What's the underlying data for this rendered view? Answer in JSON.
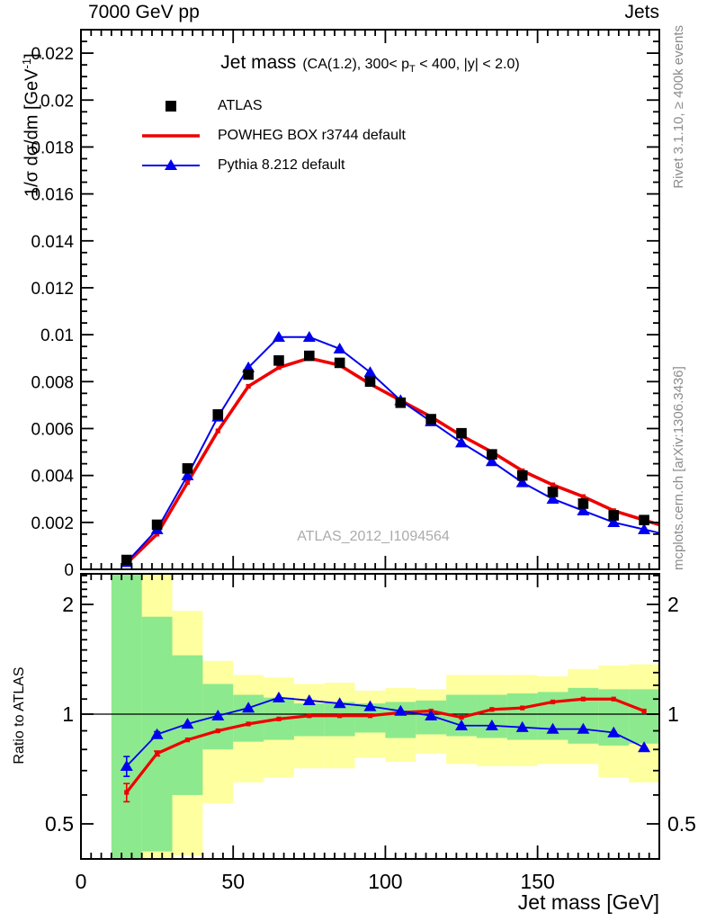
{
  "header": {
    "left": "7000 GeV pp",
    "right": "Jets"
  },
  "title": {
    "main": "Jet mass",
    "detail_pre": "(CA(1.2), 300< p",
    "detail_sub": "T",
    "detail_post": " < 400, |y| < 2.0)"
  },
  "legend": {
    "items": [
      {
        "label": "ATLAS",
        "marker": "black-square"
      },
      {
        "label": "POWHEG BOX r3744 default",
        "marker": "red-line"
      },
      {
        "label": "Pythia 8.212 default",
        "marker": "blue-triangle-line"
      }
    ]
  },
  "watermark": "ATLAS_2012_I1094564",
  "side_notes": {
    "top": "Rivet 3.1.10, ≥ 400k events",
    "bottom": "mcplots.cern.ch [arXiv:1306.3436]"
  },
  "colors": {
    "red": "#ee0000",
    "blue": "#0000ee",
    "black": "#000000",
    "band_green": "#8de98d",
    "band_yellow": "#feff9e",
    "gray_text": "#8c8c8c",
    "watermark": "#ababab"
  },
  "axes": {
    "x": {
      "label": "Jet mass [GeV]",
      "tick_labels": [
        "0",
        "50",
        "100",
        "150"
      ],
      "tick_values": [
        0,
        50,
        100,
        150
      ],
      "range": [
        0,
        190
      ]
    },
    "y_main": {
      "label_pre": "1/σ dσ/dm [GeV",
      "label_sup": "-1",
      "label_post": "]",
      "tick_values": [
        0,
        0.002,
        0.004,
        0.006,
        0.008,
        0.01,
        0.012,
        0.014,
        0.016,
        0.018,
        0.02,
        0.022
      ],
      "tick_labels": [
        "0",
        "0.002",
        "0.004",
        "0.006",
        "0.008",
        "0.01",
        "0.012",
        "0.014",
        "0.016",
        "0.018",
        "0.02",
        "0.022"
      ],
      "range": [
        0,
        0.023
      ]
    },
    "y_ratio": {
      "label": "Ratio to ATLAS",
      "scale": "log",
      "tick_values": [
        0.5,
        1,
        2
      ],
      "tick_labels": [
        "0.5",
        "1",
        "2"
      ],
      "range": [
        0.4,
        2.43
      ]
    }
  },
  "chart_data": {
    "type": "line",
    "title": "Jet mass (CA(1.2), 300< pT < 400, |y| < 2.0)",
    "xlabel": "Jet mass [GeV]",
    "ylabel": "1/sigma dsigma/dm [GeV^-1]",
    "xlim": [
      0,
      190
    ],
    "ylim": [
      0,
      0.023
    ],
    "x": [
      15,
      25,
      35,
      45,
      55,
      65,
      75,
      85,
      95,
      105,
      115,
      125,
      135,
      145,
      155,
      165,
      175,
      185
    ],
    "bin_edges": [
      10,
      20,
      30,
      40,
      50,
      60,
      70,
      80,
      90,
      100,
      110,
      120,
      130,
      140,
      150,
      160,
      170,
      180,
      190
    ],
    "series": [
      {
        "name": "ATLAS",
        "marker": "square",
        "color": "#000000",
        "values": [
          0.0004,
          0.0019,
          0.0043,
          0.0066,
          0.0083,
          0.0089,
          0.0091,
          0.0088,
          0.008,
          0.0071,
          0.0064,
          0.0058,
          0.0049,
          0.004,
          0.0033,
          0.0028,
          0.0023,
          0.0021
        ]
      },
      {
        "name": "POWHEG BOX r3744 default",
        "marker": "small-square",
        "color": "#ee0000",
        "values": [
          0.00025,
          0.0015,
          0.0037,
          0.0059,
          0.0078,
          0.0086,
          0.009,
          0.0087,
          0.0079,
          0.0072,
          0.0065,
          0.0057,
          0.005,
          0.0042,
          0.0036,
          0.0031,
          0.0025,
          0.0021
        ]
      },
      {
        "name": "Pythia 8.212 default",
        "marker": "triangle",
        "color": "#0000ee",
        "values": [
          0.0003,
          0.0017,
          0.004,
          0.0065,
          0.0086,
          0.0099,
          0.0099,
          0.0094,
          0.0084,
          0.0072,
          0.0063,
          0.0054,
          0.0046,
          0.0037,
          0.003,
          0.0025,
          0.002,
          0.0017
        ]
      }
    ],
    "ratio": {
      "ylabel": "Ratio to ATLAS",
      "baseline": 1,
      "ylim": [
        0.4,
        2.43
      ],
      "series": [
        {
          "name": "POWHEG BOX r3744 default",
          "marker": "small-square",
          "color": "#ee0000",
          "values": [
            0.61,
            0.78,
            0.85,
            0.9,
            0.94,
            0.97,
            0.99,
            0.99,
            0.99,
            1.01,
            1.02,
            0.98,
            1.03,
            1.04,
            1.08,
            1.1,
            1.1,
            1.02
          ],
          "err": [
            0.035,
            0.012,
            0,
            0,
            0,
            0,
            0,
            0,
            0,
            0,
            0,
            0,
            0,
            0,
            0,
            0,
            0,
            0
          ]
        },
        {
          "name": "Pythia 8.212 default",
          "marker": "triangle",
          "color": "#0000ee",
          "values": [
            0.72,
            0.88,
            0.94,
            0.99,
            1.04,
            1.11,
            1.09,
            1.07,
            1.05,
            1.02,
            0.99,
            0.93,
            0.93,
            0.92,
            0.91,
            0.91,
            0.89,
            0.81
          ],
          "err": [
            0.045,
            0.015,
            0,
            0,
            0,
            0,
            0,
            0,
            0,
            0,
            0,
            0,
            0,
            0,
            0,
            0,
            0,
            0
          ]
        }
      ],
      "bands": {
        "yellow": [
          [
            2.43,
            0.4
          ],
          [
            2.43,
            0.4
          ],
          [
            1.92,
            0.41
          ],
          [
            1.4,
            0.57
          ],
          [
            1.28,
            0.65
          ],
          [
            1.26,
            0.67
          ],
          [
            1.21,
            0.71
          ],
          [
            1.22,
            0.71
          ],
          [
            1.16,
            0.76
          ],
          [
            1.18,
            0.74
          ],
          [
            1.17,
            0.78
          ],
          [
            1.28,
            0.73
          ],
          [
            1.28,
            0.72
          ],
          [
            1.28,
            0.72
          ],
          [
            1.27,
            0.73
          ],
          [
            1.33,
            0.73
          ],
          [
            1.36,
            0.67
          ],
          [
            1.37,
            0.65
          ]
        ],
        "green": [
          [
            2.43,
            0.4
          ],
          [
            1.85,
            0.42
          ],
          [
            1.45,
            0.6
          ],
          [
            1.21,
            0.8
          ],
          [
            1.13,
            0.84
          ],
          [
            1.11,
            0.85
          ],
          [
            1.07,
            0.87
          ],
          [
            1.08,
            0.87
          ],
          [
            1.07,
            0.89
          ],
          [
            1.08,
            0.86
          ],
          [
            1.09,
            0.88
          ],
          [
            1.13,
            0.87
          ],
          [
            1.13,
            0.86
          ],
          [
            1.14,
            0.85
          ],
          [
            1.15,
            0.85
          ],
          [
            1.18,
            0.83
          ],
          [
            1.17,
            0.82
          ],
          [
            1.17,
            0.83
          ]
        ]
      }
    }
  }
}
